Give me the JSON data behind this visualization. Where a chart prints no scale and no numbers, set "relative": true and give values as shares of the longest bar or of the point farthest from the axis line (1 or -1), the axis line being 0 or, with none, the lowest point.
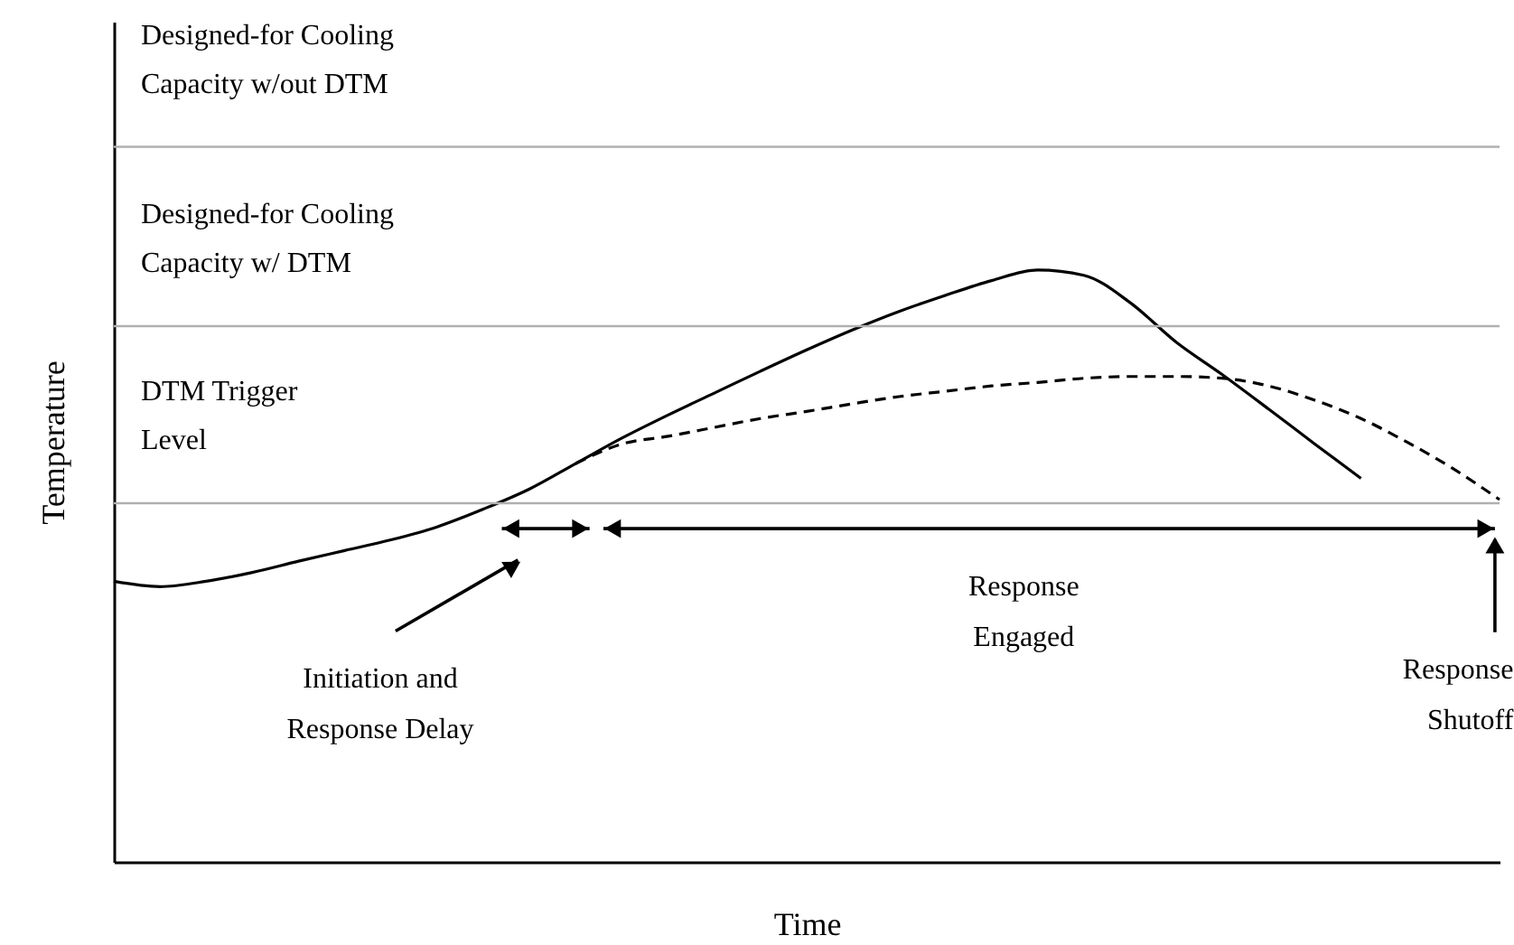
{
  "chart_data": {
    "type": "line",
    "relative": true,
    "xlabel": "Time",
    "ylabel": "Temperature",
    "tick_labels": false,
    "grid": false,
    "categories": [
      null,
      null,
      null,
      null,
      null,
      null,
      null,
      null,
      null,
      null,
      null,
      null,
      null,
      null,
      null,
      null,
      null,
      null,
      null,
      null,
      null,
      null,
      null,
      null,
      null,
      null,
      null,
      null,
      null,
      null,
      null
    ],
    "series": [
      {
        "color": "#000000",
        "line_style": "solid",
        "values": [
          0.474,
          0.465,
          0.474,
          0.489,
          0.508,
          0.526,
          0.544,
          0.566,
          0.596,
          0.63,
          0.673,
          0.716,
          0.755,
          0.792,
          0.829,
          0.865,
          0.899,
          0.93,
          0.957,
          0.982,
          1,
          0.991,
          0.945,
          0.878,
          0.823,
          0.765,
          0.706,
          0.648,
          null,
          null,
          null
        ]
      },
      {
        "color": "#000000",
        "line_style": "dashed",
        "values": [
          null,
          null,
          null,
          null,
          null,
          null,
          null,
          null,
          null,
          null,
          0.673,
          0.706,
          0.719,
          0.734,
          0.749,
          0.761,
          0.774,
          0.786,
          0.795,
          0.804,
          0.81,
          0.817,
          0.82,
          0.82,
          0.817,
          0.804,
          0.78,
          0.749,
          0.709,
          0.664,
          0.612
        ]
      }
    ],
    "ref_lines": [
      {
        "axis": "y",
        "value": 1.208,
        "label": "Designed-for Cooling Capacity w/out DTM",
        "color": "#b0b0b0"
      },
      {
        "axis": "y",
        "value": 0.905,
        "label": "Designed-for Cooling Capacity w/ DTM",
        "color": "#b0b0b0"
      },
      {
        "axis": "y",
        "value": 0.606,
        "label": "DTM Trigger Level",
        "color": "#b0b0b0"
      }
    ],
    "annotations": [
      "Initiation and Response Delay",
      "Response Engaged",
      "Response Shutoff"
    ]
  }
}
